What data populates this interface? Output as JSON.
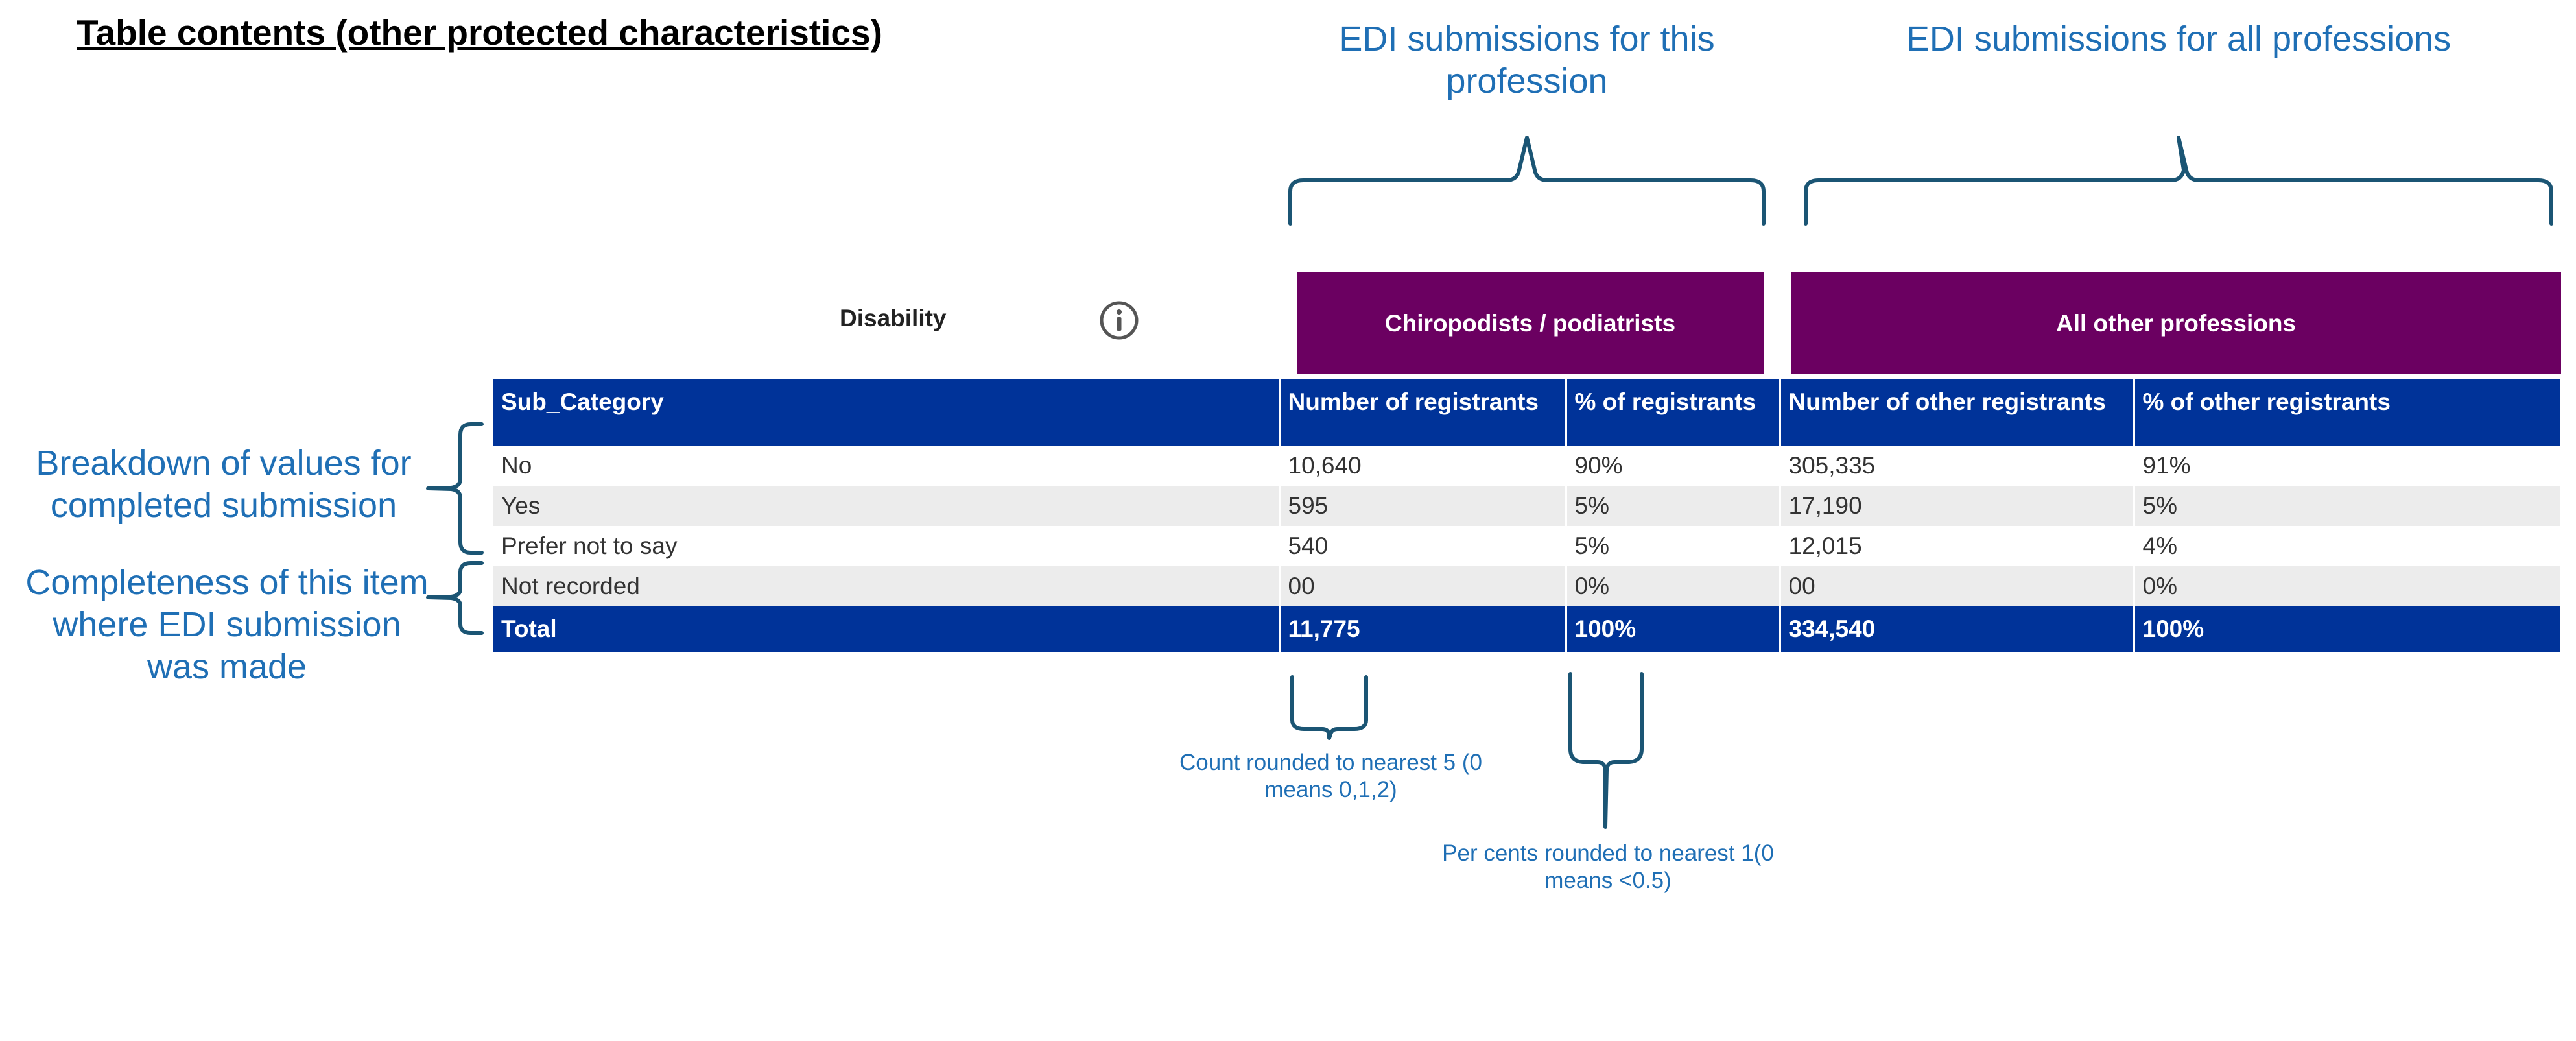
{
  "heading": "Table contents (other protected characteristics)",
  "groups": {
    "this_profession": "EDI submissions for this profession",
    "all_professions": "EDI submissions for all professions"
  },
  "side_notes": {
    "breakdown": "Breakdown of values for completed submission",
    "completeness": "Completeness of this item where EDI submission was made"
  },
  "bottom_notes": {
    "count": "Count rounded to nearest 5 (0 means 0,1,2)",
    "percent": "Per cents rounded to nearest 1(0 means <0.5)"
  },
  "table": {
    "title": "Disability",
    "info_icon": "info-icon",
    "profession_header": "Chiropodists / podiatrists",
    "other_header": "All other professions",
    "columns": [
      "Sub_Category",
      "Number of registrants",
      "% of registrants",
      "Number of other registrants",
      "% of other registrants"
    ],
    "rows": [
      [
        "No",
        "10,640",
        "90%",
        "305,335",
        "91%"
      ],
      [
        "Yes",
        "595",
        "5%",
        "17,190",
        "5%"
      ],
      [
        "Prefer not to say",
        "540",
        "5%",
        "12,015",
        "4%"
      ],
      [
        "Not recorded",
        "00",
        "0%",
        "00",
        "0%"
      ]
    ],
    "total": [
      "Total",
      "11,775",
      "100%",
      "334,540",
      "100%"
    ]
  },
  "colors": {
    "header_blue": "#003399",
    "profession_purple": "#6b0061",
    "annotation_blue": "#1f6fb5",
    "brace": "#1b5574"
  }
}
